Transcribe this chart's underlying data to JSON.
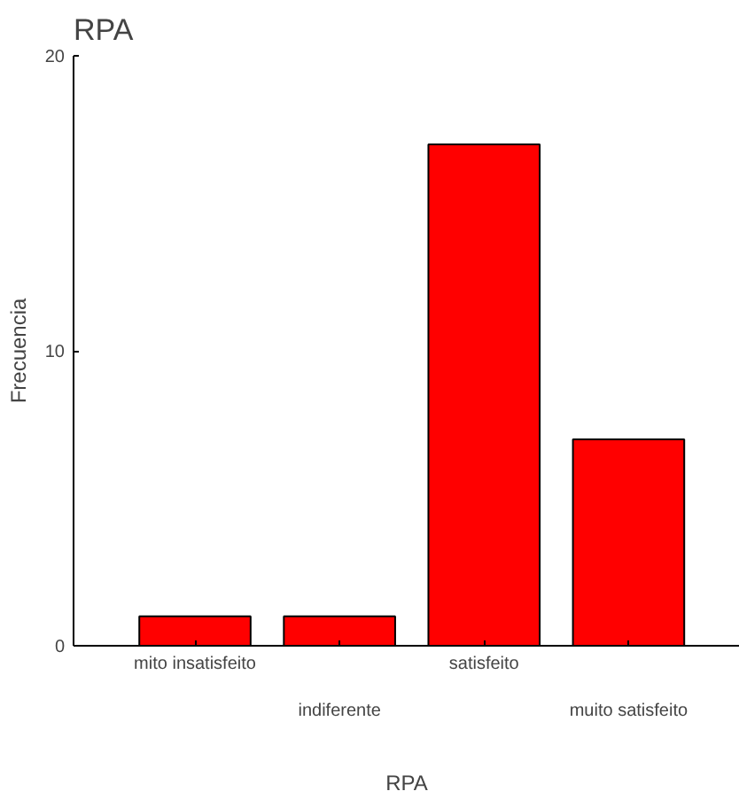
{
  "chart_data": {
    "type": "bar",
    "title": "RPA",
    "xlabel": "RPA",
    "ylabel": "Frecuencia",
    "categories": [
      "mito insatisfeito",
      "indiferente",
      "satisfeito",
      "muito satisfeito"
    ],
    "values": [
      1,
      1,
      17,
      7
    ],
    "color": "#ff0000",
    "ylim": [
      0,
      20
    ],
    "yticks": [
      0,
      10,
      20
    ],
    "grid": false
  }
}
